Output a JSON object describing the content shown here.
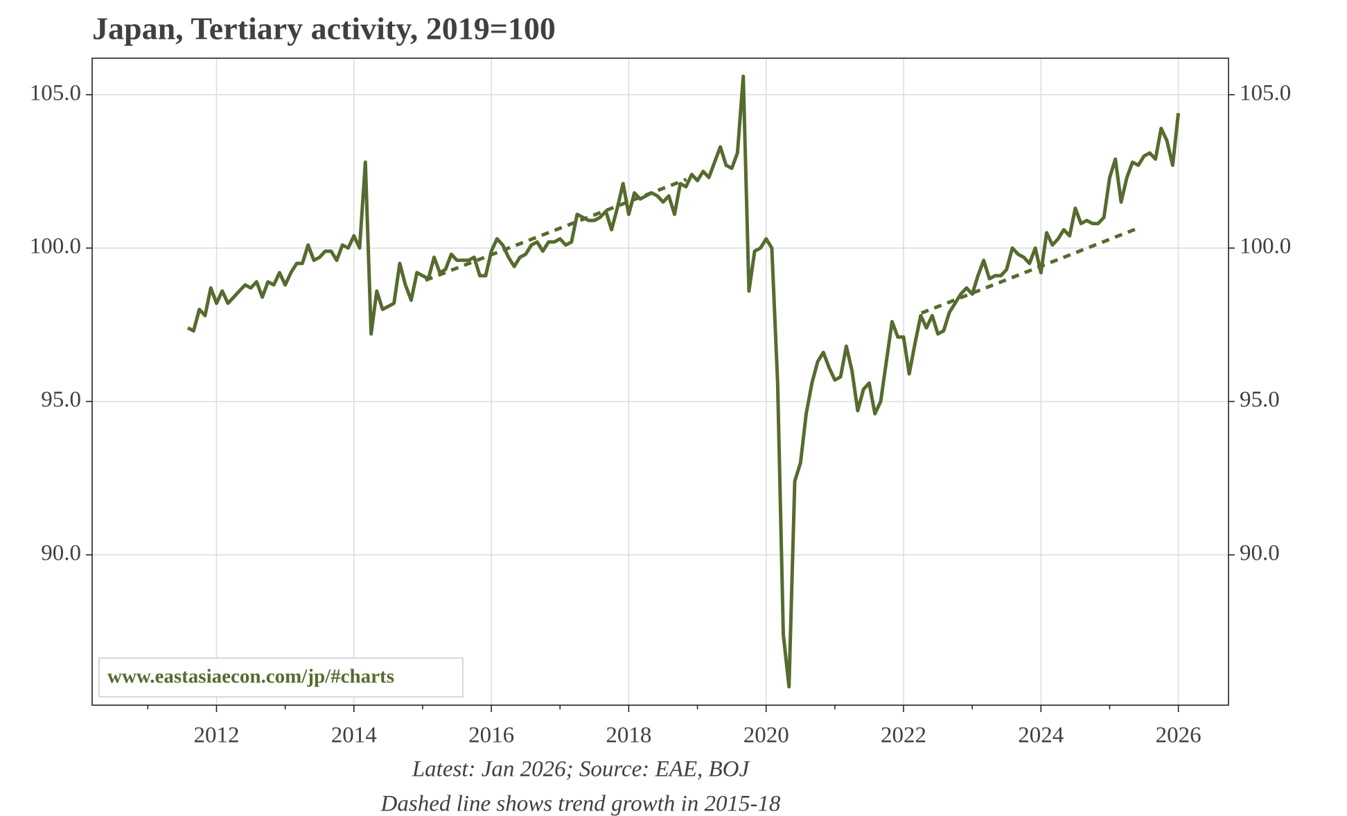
{
  "chart_data": {
    "type": "line",
    "title": "Japan, Tertiary activity, 2019=100",
    "watermark": "www.eastasiaecon.com/jp/#charts",
    "notes": [
      "Latest: Jan 2026; Source: EAE, BOJ",
      "Dashed line shows trend growth in 2015-18"
    ],
    "xlim": [
      2010.19,
      2026.73
    ],
    "xticks": [
      2012,
      2014,
      2016,
      2018,
      2020,
      2022,
      2024,
      2026
    ],
    "xminor_ticks": [
      2011,
      2013,
      2015,
      2017,
      2019,
      2021,
      2023,
      2025
    ],
    "ylim": [
      85.1,
      106.19
    ],
    "yticks": [
      {
        "value": 90,
        "label": "90.0"
      },
      {
        "value": 95,
        "label": "95.0"
      },
      {
        "value": 100,
        "label": "100.0"
      },
      {
        "value": 105,
        "label": "105.0"
      }
    ],
    "right_axis": true,
    "grid": true,
    "x": [
      2011.583,
      2011.667,
      2011.75,
      2011.833,
      2011.917,
      2012,
      2012.083,
      2012.167,
      2012.25,
      2012.333,
      2012.417,
      2012.5,
      2012.583,
      2012.667,
      2012.75,
      2012.833,
      2012.917,
      2013,
      2013.083,
      2013.167,
      2013.25,
      2013.333,
      2013.417,
      2013.5,
      2013.583,
      2013.667,
      2013.75,
      2013.833,
      2013.917,
      2014,
      2014.083,
      2014.167,
      2014.25,
      2014.333,
      2014.417,
      2014.5,
      2014.583,
      2014.667,
      2014.75,
      2014.833,
      2014.917,
      2015,
      2015.083,
      2015.167,
      2015.25,
      2015.333,
      2015.417,
      2015.5,
      2015.583,
      2015.667,
      2015.75,
      2015.833,
      2015.917,
      2016,
      2016.083,
      2016.167,
      2016.25,
      2016.333,
      2016.417,
      2016.5,
      2016.583,
      2016.667,
      2016.75,
      2016.833,
      2016.917,
      2017,
      2017.083,
      2017.167,
      2017.25,
      2017.333,
      2017.417,
      2017.5,
      2017.583,
      2017.667,
      2017.75,
      2017.833,
      2017.917,
      2018,
      2018.083,
      2018.167,
      2018.25,
      2018.333,
      2018.417,
      2018.5,
      2018.583,
      2018.667,
      2018.75,
      2018.833,
      2018.917,
      2019,
      2019.083,
      2019.167,
      2019.25,
      2019.333,
      2019.417,
      2019.5,
      2019.583,
      2019.667,
      2019.75,
      2019.833,
      2019.917,
      2020,
      2020.083,
      2020.167,
      2020.25,
      2020.333,
      2020.417,
      2020.5,
      2020.583,
      2020.667,
      2020.75,
      2020.833,
      2020.917,
      2021,
      2021.083,
      2021.167,
      2021.25,
      2021.333,
      2021.417,
      2021.5,
      2021.583,
      2021.667,
      2021.75,
      2021.833,
      2021.917,
      2022,
      2022.083,
      2022.167,
      2022.25,
      2022.333,
      2022.417,
      2022.5,
      2022.583,
      2022.667,
      2022.75,
      2022.833,
      2022.917,
      2023,
      2023.083,
      2023.167,
      2023.25,
      2023.333,
      2023.417,
      2023.5,
      2023.583,
      2023.667,
      2023.75,
      2023.833,
      2023.917,
      2024,
      2024.083,
      2024.167,
      2024.25,
      2024.333,
      2024.417,
      2024.5,
      2024.583,
      2024.667,
      2024.75,
      2024.833,
      2024.917,
      2025,
      2025.083,
      2025.167,
      2025.25,
      2025.333,
      2025.417,
      2025.5,
      2025.583,
      2025.667,
      2025.75,
      2025.833,
      2025.917,
      2026
    ],
    "series": [
      {
        "color": "#566b2f",
        "values": [
          97.4,
          97.3,
          98.0,
          97.8,
          98.7,
          98.2,
          98.6,
          98.2,
          98.4,
          98.6,
          98.8,
          98.7,
          98.9,
          98.4,
          98.9,
          98.8,
          99.2,
          98.8,
          99.2,
          99.5,
          99.5,
          100.1,
          99.6,
          99.7,
          99.9,
          99.9,
          99.6,
          100.1,
          100.0,
          100.4,
          100.0,
          102.8,
          97.2,
          98.6,
          98.0,
          98.1,
          98.2,
          99.5,
          98.8,
          98.3,
          99.2,
          99.1,
          99.0,
          99.7,
          99.2,
          99.3,
          99.8,
          99.6,
          99.6,
          99.6,
          99.7,
          99.1,
          99.1,
          99.9,
          100.3,
          100.1,
          99.7,
          99.4,
          99.7,
          99.8,
          100.1,
          100.2,
          99.9,
          100.2,
          100.2,
          100.3,
          100.1,
          100.2,
          101.1,
          101.0,
          100.9,
          100.9,
          101.0,
          101.2,
          100.6,
          101.3,
          102.1,
          101.1,
          101.8,
          101.6,
          101.7,
          101.8,
          101.7,
          101.5,
          101.7,
          101.1,
          102.1,
          102.0,
          102.4,
          102.2,
          102.5,
          102.3,
          102.8,
          103.3,
          102.7,
          102.6,
          103.1,
          105.6,
          98.6,
          99.9,
          100.0,
          100.3,
          100.0,
          95.6,
          87.4,
          85.7,
          92.4,
          93.0,
          94.6,
          95.6,
          96.3,
          96.6,
          96.1,
          95.7,
          95.8,
          96.8,
          96.0,
          94.7,
          95.4,
          95.6,
          94.6,
          95.0,
          96.3,
          97.6,
          97.1,
          97.1,
          95.9,
          96.9,
          97.8,
          97.4,
          97.8,
          97.2,
          97.3,
          97.9,
          98.2,
          98.5,
          98.7,
          98.5,
          99.1,
          99.6,
          99.0,
          99.1,
          99.1,
          99.3,
          100.0,
          99.8,
          99.7,
          99.5,
          100.0,
          99.2,
          100.5,
          100.1,
          100.3,
          100.6,
          100.4,
          101.3,
          100.8,
          100.9,
          100.8,
          100.8,
          101.0,
          102.3,
          102.9,
          101.5,
          102.3,
          102.8,
          102.7,
          103.0,
          103.1,
          102.9,
          103.9,
          103.5,
          102.7,
          104.4
        ]
      }
    ],
    "trend_lines": [
      {
        "color": "#566b2f",
        "x": [
          2015.04,
          2018.84
        ],
        "values": [
          98.95,
          102.24
        ]
      },
      {
        "color": "#566b2f",
        "x": [
          2022.26,
          2025.38
        ],
        "values": [
          97.88,
          100.62
        ]
      }
    ]
  }
}
